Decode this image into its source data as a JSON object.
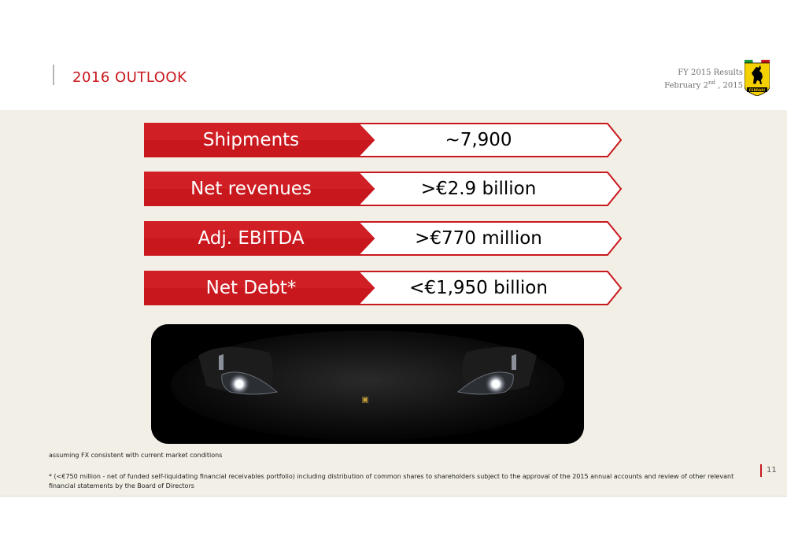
{
  "header": {
    "title": "2016 OUTLOOK",
    "results_line": "FY 2015 Results",
    "date_main": "February 2",
    "date_sup": "nd",
    "date_rest": " , 2015",
    "logo_text": "FERRARI"
  },
  "colors": {
    "brand_red": "#c8181e",
    "background_panel": "#f2efe6"
  },
  "metrics": [
    {
      "label": "Shipments",
      "value": "~7,900"
    },
    {
      "label": "Net revenues",
      "value": ">€2.9 billion"
    },
    {
      "label": "Adj. EBITDA",
      "value": ">€770 million"
    },
    {
      "label": "Net Debt*",
      "value": "<€1,950 billion"
    }
  ],
  "image": {
    "icon": "car-front-headlights-photo"
  },
  "notes": {
    "fx": "assuming FX consistent with current market conditions",
    "footnote": "* (<€750 million - net of funded self-liquidating financial receivables portfolio) including distribution of common shares to shareholders subject to the approval of the 2015 annual accounts and review of other relevant financial statements by the Board of Directors"
  },
  "page_number": "11"
}
